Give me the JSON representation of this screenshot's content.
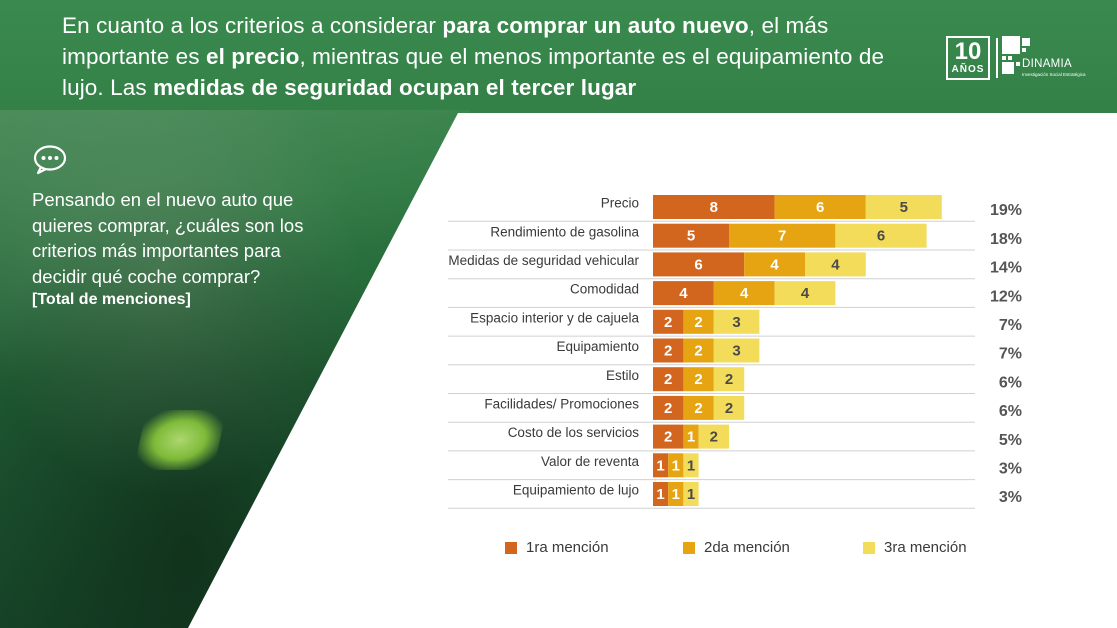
{
  "headline": {
    "p1": "En cuanto a los criterios a considerar ",
    "b1": "para comprar un auto nuevo",
    "p2": ", el más importante es ",
    "b2": "el precio",
    "p3": ", mientras que el menos importante es el equipamiento de lujo. Las ",
    "b3": "medidas de seguridad ocupan el tercer lugar"
  },
  "logo": {
    "number": "10",
    "years": "AÑOS",
    "name": "DINAMIA",
    "subtitle": "Investigación Social Estratégica"
  },
  "icons": {
    "chat": "chat-bubble-icon"
  },
  "question": {
    "text": "Pensando en el nuevo auto que quieres comprar, ¿cuáles son los criterios más importantes para decidir qué coche comprar?",
    "note": "[Total de menciones]"
  },
  "colors": {
    "first": "#d3661f",
    "second": "#e6a412",
    "third": "#f3dc5a",
    "green": "#2f7a43"
  },
  "chart_data": {
    "type": "bar",
    "orientation": "horizontal",
    "stacked": true,
    "categories": [
      "Precio",
      "Rendimiento de gasolina",
      "Medidas de seguridad vehicular",
      "Comodidad",
      "Espacio interior y de cajuela",
      "Equipamiento",
      "Estilo",
      "Facilidades/ Promociones",
      "Costo de los servicios",
      "Valor de reventa",
      "Equipamiento de lujo"
    ],
    "series": [
      {
        "name": "1ra mención",
        "values": [
          8,
          5,
          6,
          4,
          2,
          2,
          2,
          2,
          2,
          1,
          1
        ]
      },
      {
        "name": "2da mención",
        "values": [
          6,
          7,
          4,
          4,
          2,
          2,
          2,
          2,
          1,
          1,
          1
        ]
      },
      {
        "name": "3ra mención",
        "values": [
          5,
          6,
          4,
          4,
          3,
          3,
          2,
          2,
          2,
          1,
          1
        ]
      }
    ],
    "totals": [
      "19%",
      "18%",
      "14%",
      "12%",
      "7%",
      "7%",
      "6%",
      "6%",
      "5%",
      "3%",
      "3%"
    ],
    "xlim": [
      0,
      19
    ],
    "legend": "bottom"
  }
}
